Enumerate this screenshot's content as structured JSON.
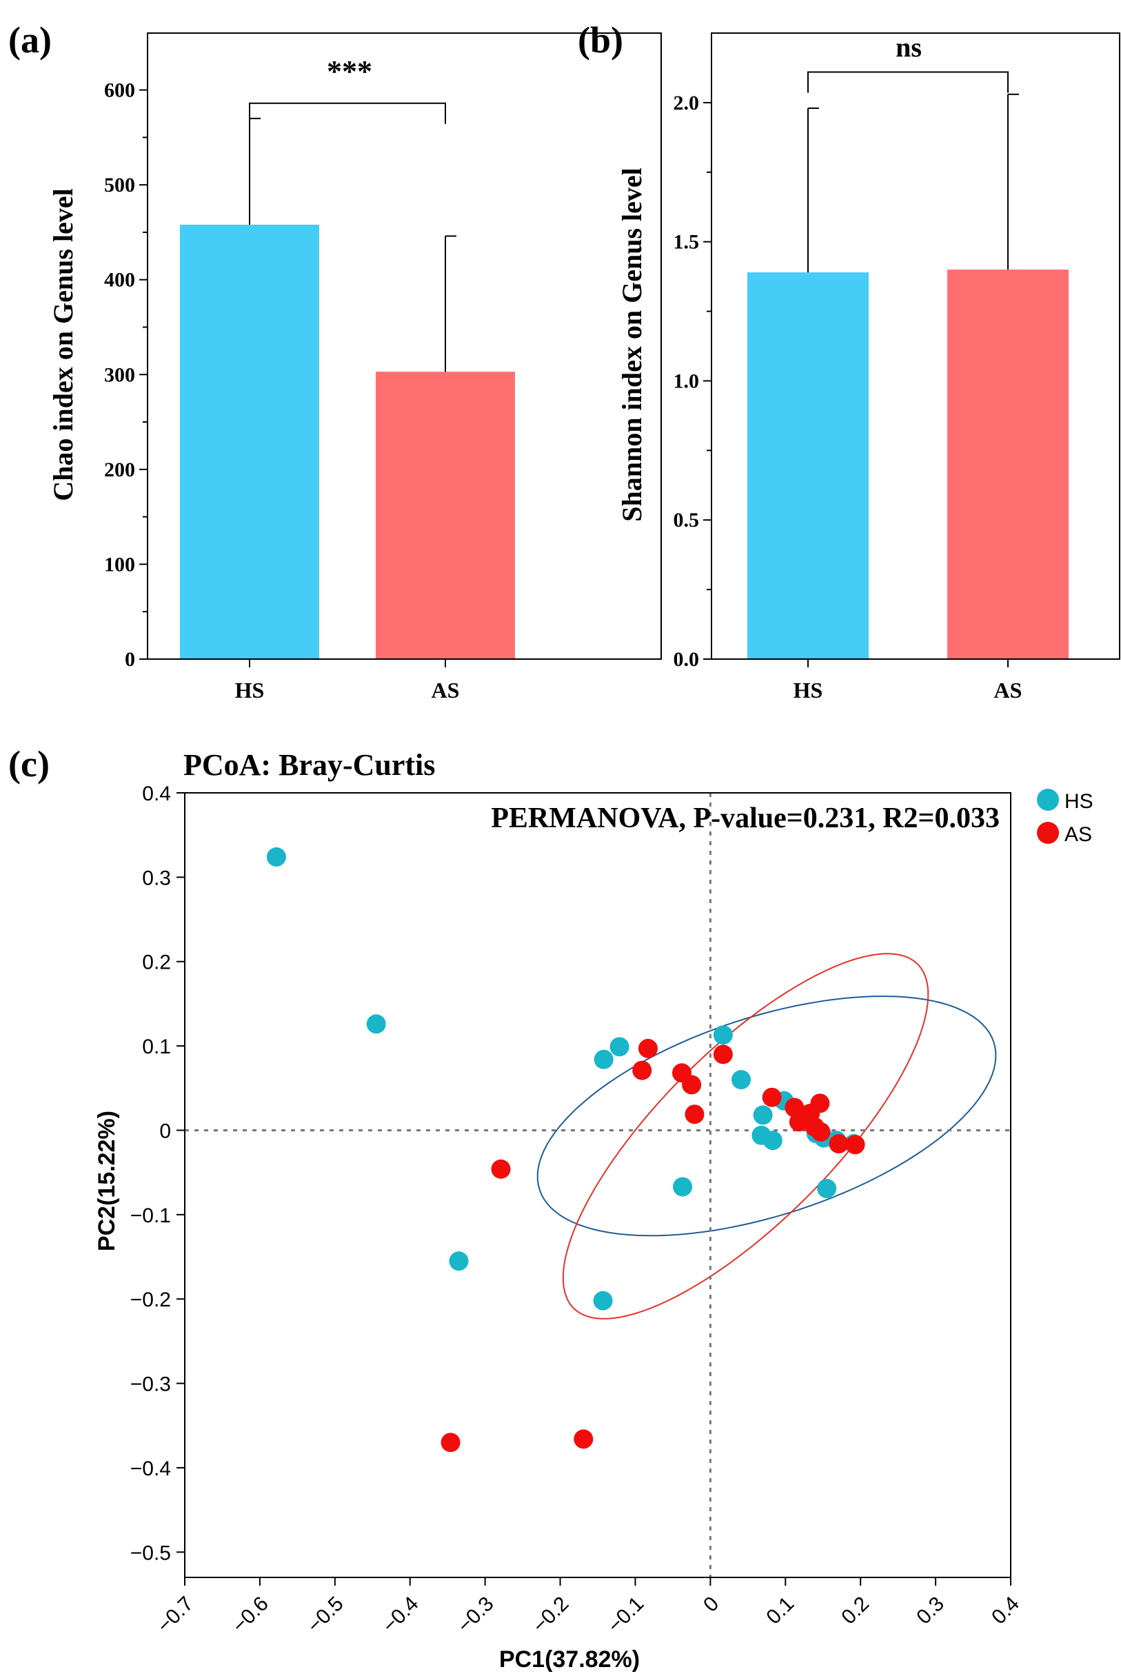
{
  "colors": {
    "hs_bar": "#45CCF7",
    "as_bar": "#FF6F6F",
    "hs_point": "#19B5C9",
    "as_point": "#F20D0D",
    "hs_ellipse": "#1F5C96",
    "as_ellipse": "#E8302A",
    "axis": "#000000"
  },
  "chart_data": [
    {
      "type": "bar",
      "panel_label": "(a)",
      "categories": [
        "HS",
        "AS"
      ],
      "values": [
        458,
        303
      ],
      "errors": [
        112,
        143
      ],
      "ylabel": "Chao index on Genus level",
      "ylim": [
        0,
        660
      ],
      "yticks": [
        0,
        100,
        200,
        300,
        400,
        500,
        600
      ],
      "ytick_labels": [
        "0",
        "100",
        "200",
        "300",
        "400",
        "500",
        "600"
      ],
      "significance": "***",
      "bracket_y": 586
    },
    {
      "type": "bar",
      "panel_label": "(b)",
      "categories": [
        "HS",
        "AS"
      ],
      "values": [
        1.39,
        1.4
      ],
      "errors": [
        0.59,
        0.63
      ],
      "ylabel": "Shannon index on Genus level",
      "ylim": [
        0,
        2.25
      ],
      "yticks": [
        0,
        0.5,
        1,
        1.5,
        2
      ],
      "ytick_labels": [
        "0.0",
        "0.5",
        "1.0",
        "1.5",
        "2.0"
      ],
      "significance": "ns",
      "bracket_y": 2.11
    },
    {
      "type": "scatter",
      "panel_label": "(c)",
      "title": "PCoA: Bray-Curtis",
      "annotation": "PERMANOVA, P-value=0.231, R2=0.033",
      "xlabel": "PC1(37.82%)",
      "ylabel": "PC2(15.22%)",
      "xlim": [
        -0.7,
        0.4
      ],
      "ylim": [
        -0.53,
        0.4
      ],
      "xticks": [
        -0.7,
        -0.6,
        -0.5,
        -0.4,
        -0.3,
        -0.2,
        -0.1,
        0,
        0.1,
        0.2,
        0.3,
        0.4
      ],
      "xtick_labels": [
        "−0.7",
        "−0.6",
        "−0.5",
        "−0.4",
        "−0.3",
        "−0.2",
        "−0.1",
        "0",
        "0.1",
        "0.2",
        "0.3",
        "0.4"
      ],
      "yticks": [
        0.4,
        0.3,
        0.2,
        0.1,
        0,
        -0.1,
        -0.2,
        -0.3,
        -0.4,
        -0.5
      ],
      "ytick_labels": [
        "0.4",
        "0.3",
        "0.2",
        "0.1",
        "0",
        "−0.1",
        "−0.2",
        "−0.3",
        "−0.4",
        "−0.5"
      ],
      "legend_position": "top-right",
      "series": [
        {
          "name": "HS",
          "points": [
            [
              -0.578,
              0.324
            ],
            [
              -0.445,
              0.126
            ],
            [
              -0.335,
              -0.155
            ],
            [
              -0.143,
              -0.202
            ],
            [
              -0.142,
              0.084
            ],
            [
              -0.121,
              0.099
            ],
            [
              -0.037,
              -0.067
            ],
            [
              0.017,
              0.113
            ],
            [
              0.041,
              0.06
            ],
            [
              0.07,
              0.018
            ],
            [
              0.068,
              -0.006
            ],
            [
              0.083,
              -0.012
            ],
            [
              0.098,
              0.035
            ],
            [
              0.141,
              -0.004
            ],
            [
              0.151,
              -0.009
            ],
            [
              0.168,
              -0.012
            ],
            [
              0.191,
              -0.016
            ],
            [
              0.155,
              -0.069
            ]
          ]
        },
        {
          "name": "AS",
          "points": [
            [
              -0.346,
              -0.37
            ],
            [
              -0.169,
              -0.366
            ],
            [
              -0.279,
              -0.046
            ],
            [
              -0.083,
              0.097
            ],
            [
              -0.091,
              0.071
            ],
            [
              -0.038,
              0.068
            ],
            [
              -0.025,
              0.054
            ],
            [
              -0.021,
              0.019
            ],
            [
              0.017,
              0.09
            ],
            [
              0.082,
              0.039
            ],
            [
              0.112,
              0.027
            ],
            [
              0.121,
              0.016
            ],
            [
              0.118,
              0.01
            ],
            [
              0.133,
              0.02
            ],
            [
              0.146,
              0.032
            ],
            [
              0.139,
              0.004
            ],
            [
              0.147,
              -0.002
            ],
            [
              0.171,
              -0.016
            ],
            [
              0.193,
              -0.017
            ]
          ]
        }
      ],
      "ellipses": [
        {
          "group": "HS",
          "cx": 0.075,
          "cy": 0.017,
          "rx": 0.318,
          "ry": 0.132,
          "angle_deg": -18
        },
        {
          "group": "AS",
          "cx": 0.047,
          "cy": -0.007,
          "rx": 0.324,
          "ry": 0.115,
          "angle_deg": -45
        }
      ]
    }
  ]
}
